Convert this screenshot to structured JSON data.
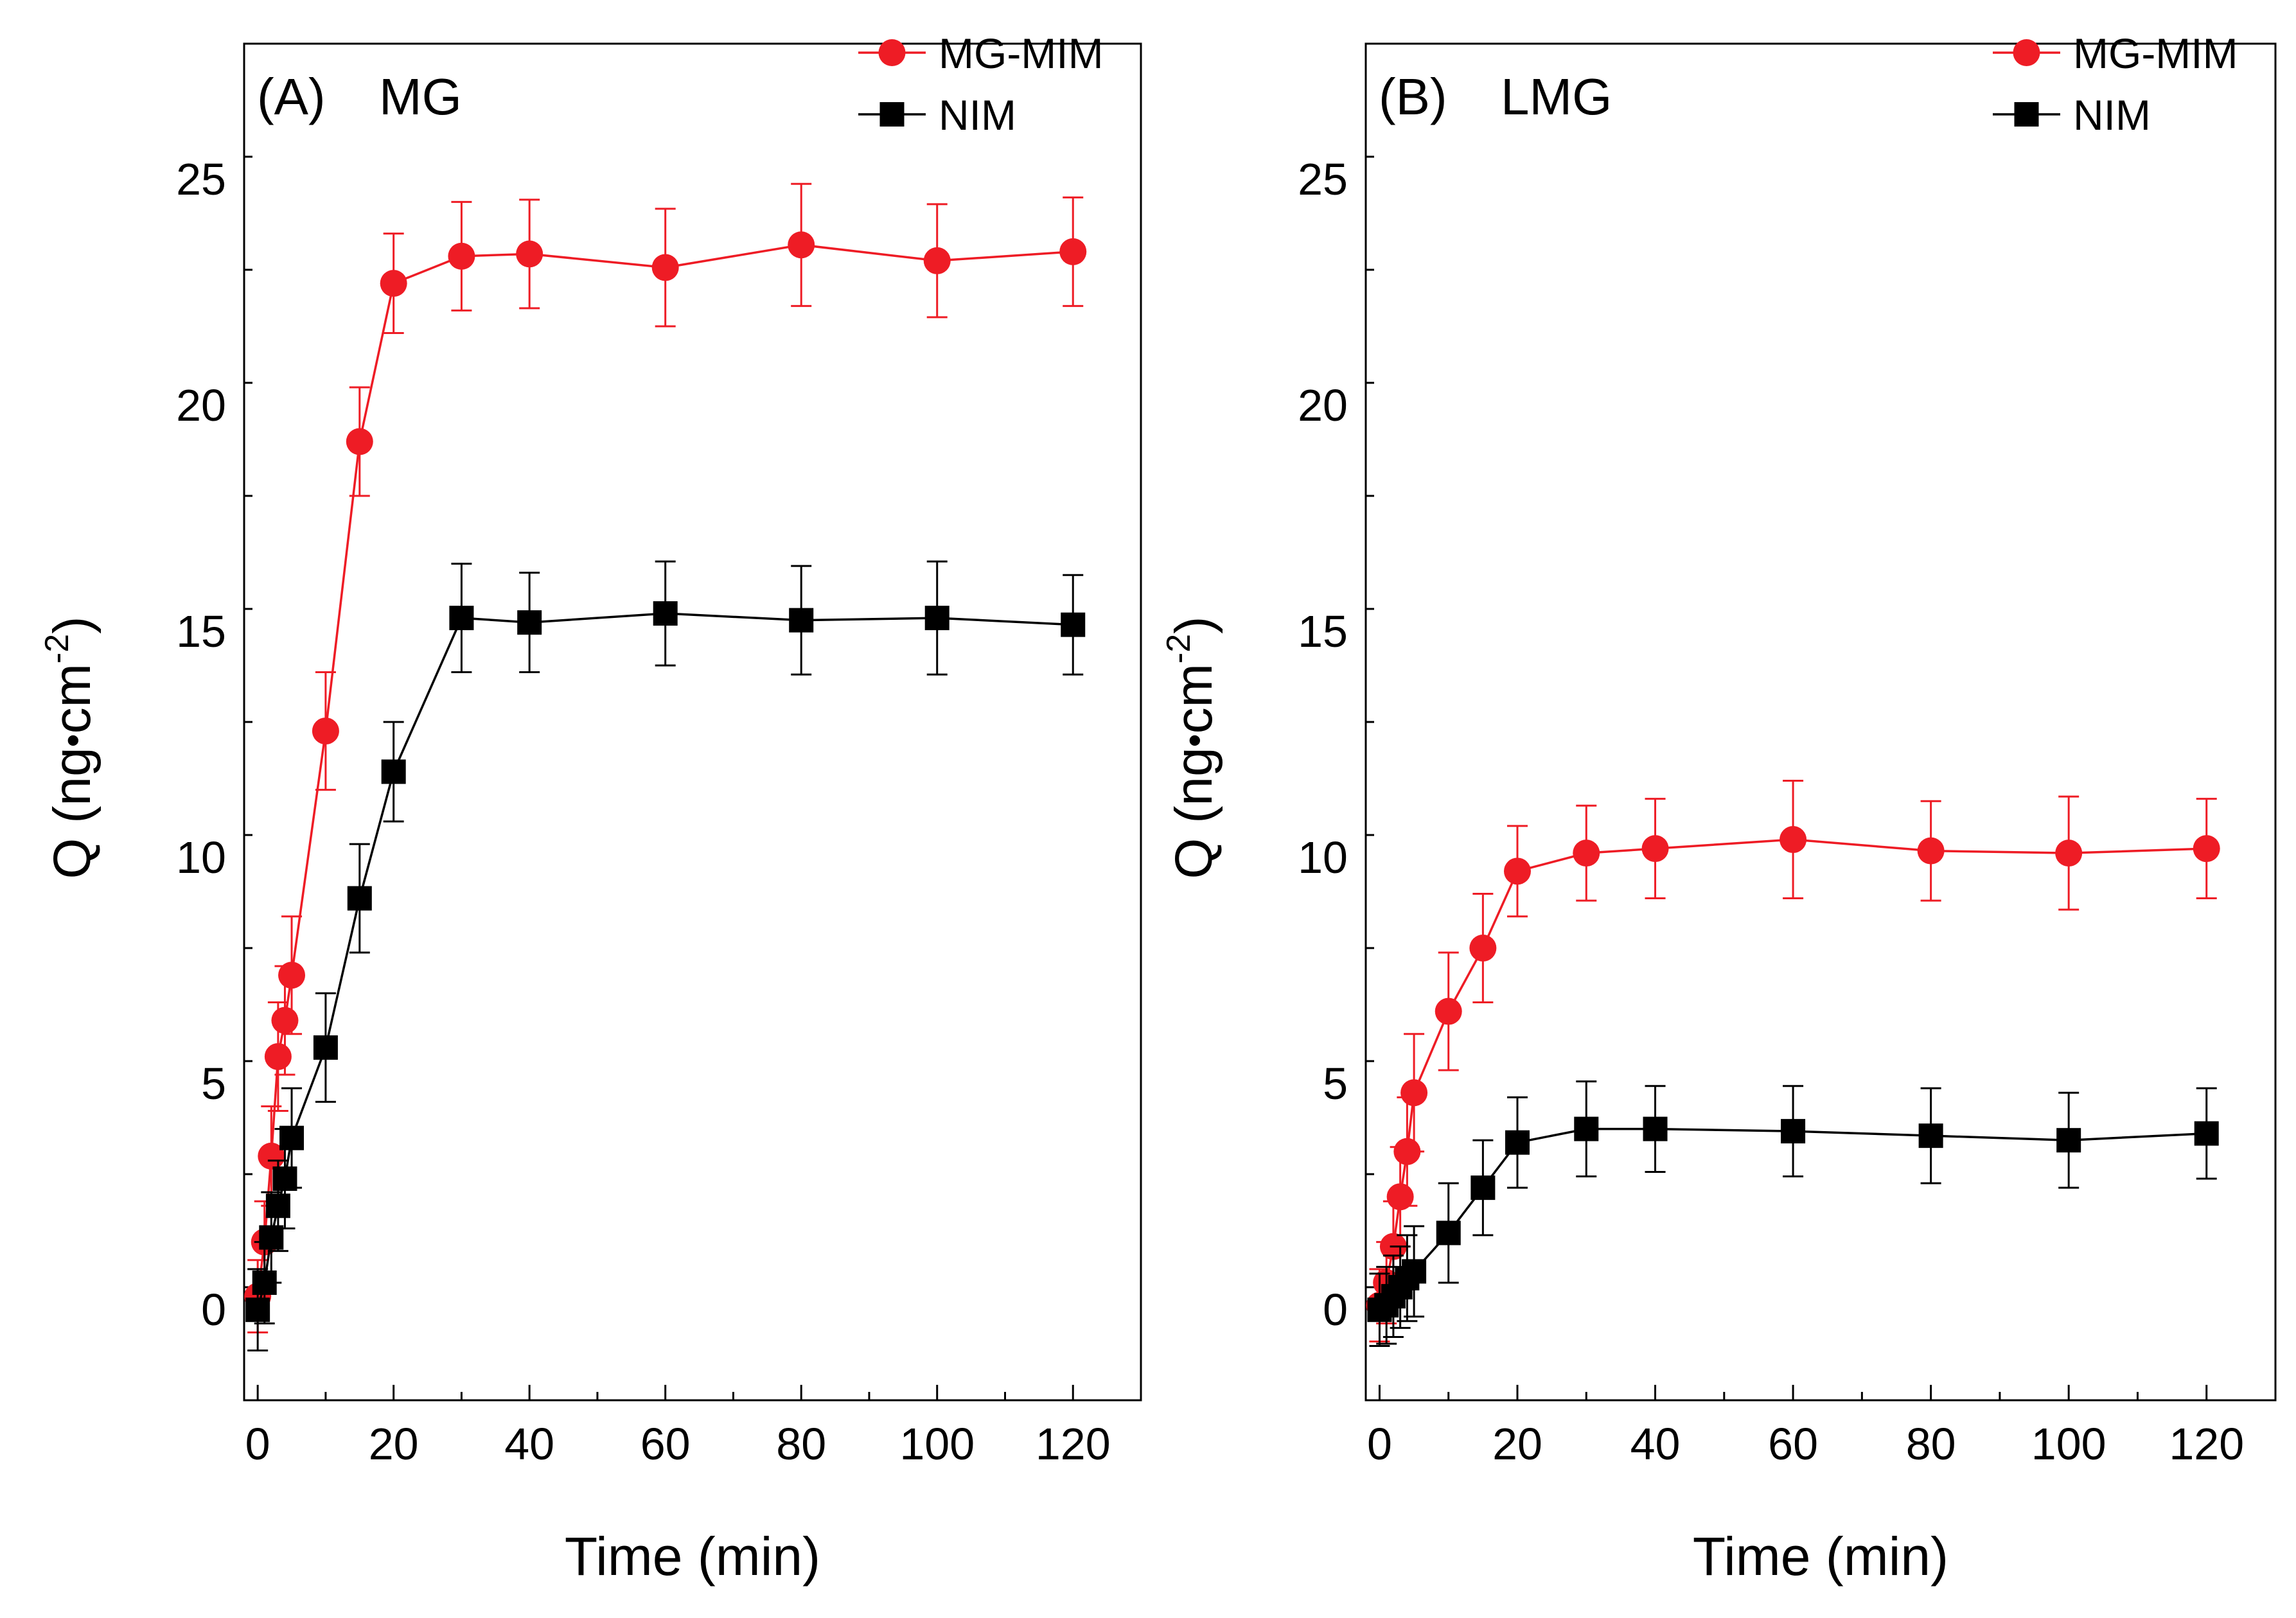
{
  "chart_data": [
    {
      "type": "line",
      "panel": "(A)",
      "title": "MG",
      "xlabel": "Time (min)",
      "ylabel_main": "Q (ng",
      "ylabel_unit": "cm",
      "ylabel_sup": "-2",
      "ylabel_close": ")",
      "xlim": [
        -2,
        130
      ],
      "ylim": [
        -2,
        28
      ],
      "xticks": [
        0,
        20,
        40,
        60,
        80,
        100,
        120
      ],
      "yticks": [
        0,
        5,
        10,
        15,
        20,
        25
      ],
      "legend_position": "top-right",
      "series": [
        {
          "name": "MG-MIM",
          "color": "#ee1c25",
          "marker": "circle",
          "x": [
            0,
            1,
            2,
            3,
            4,
            5,
            10,
            15,
            20,
            30,
            40,
            60,
            80,
            100,
            120
          ],
          "y": [
            0.3,
            1.5,
            3.4,
            5.6,
            6.4,
            7.4,
            12.8,
            19.2,
            22.7,
            23.3,
            23.35,
            23.05,
            23.55,
            23.2,
            23.4
          ],
          "err": [
            0.8,
            0.9,
            1.1,
            1.2,
            1.2,
            1.3,
            1.3,
            1.2,
            1.1,
            1.2,
            1.2,
            1.3,
            1.35,
            1.25,
            1.2
          ]
        },
        {
          "name": "NIM",
          "color": "#000000",
          "marker": "square",
          "x": [
            0,
            1,
            2,
            3,
            4,
            5,
            10,
            15,
            20,
            30,
            40,
            60,
            80,
            100,
            120
          ],
          "y": [
            0.0,
            0.6,
            1.6,
            2.3,
            2.9,
            3.8,
            5.8,
            9.1,
            11.9,
            15.3,
            15.2,
            15.4,
            15.25,
            15.3,
            15.15
          ],
          "err": [
            0.9,
            0.9,
            1.0,
            1.0,
            1.1,
            1.1,
            1.2,
            1.2,
            1.1,
            1.2,
            1.1,
            1.15,
            1.2,
            1.25,
            1.1
          ]
        }
      ]
    },
    {
      "type": "line",
      "panel": "(B)",
      "title": "LMG",
      "xlabel": "Time (min)",
      "ylabel_main": "Q (ng",
      "ylabel_unit": "cm",
      "ylabel_sup": "-2",
      "ylabel_close": ")",
      "xlim": [
        -2,
        130
      ],
      "ylim": [
        -2,
        28
      ],
      "xticks": [
        0,
        20,
        40,
        60,
        80,
        100,
        120
      ],
      "yticks": [
        0,
        5,
        10,
        15,
        20,
        25
      ],
      "legend_position": "top-right",
      "series": [
        {
          "name": "MG-MIM",
          "color": "#ee1c25",
          "marker": "circle",
          "x": [
            0,
            1,
            2,
            3,
            4,
            5,
            10,
            15,
            20,
            30,
            40,
            60,
            80,
            100,
            120
          ],
          "y": [
            0.1,
            0.6,
            1.4,
            2.5,
            3.5,
            4.8,
            6.6,
            8.0,
            9.7,
            10.1,
            10.2,
            10.4,
            10.15,
            10.1,
            10.2
          ],
          "err": [
            0.8,
            0.9,
            1.0,
            1.1,
            1.2,
            1.3,
            1.3,
            1.2,
            1.0,
            1.05,
            1.1,
            1.3,
            1.1,
            1.25,
            1.1
          ]
        },
        {
          "name": "NIM",
          "color": "#000000",
          "marker": "square",
          "x": [
            0,
            1,
            2,
            3,
            4,
            5,
            10,
            15,
            20,
            30,
            40,
            60,
            80,
            100,
            120
          ],
          "y": [
            0.0,
            0.1,
            0.3,
            0.5,
            0.7,
            0.85,
            1.7,
            2.7,
            3.7,
            4.0,
            4.0,
            3.95,
            3.85,
            3.75,
            3.9
          ],
          "err": [
            0.8,
            0.85,
            0.9,
            0.9,
            0.95,
            1.0,
            1.1,
            1.05,
            1.0,
            1.05,
            0.95,
            1.0,
            1.05,
            1.05,
            1.0
          ]
        }
      ]
    }
  ]
}
